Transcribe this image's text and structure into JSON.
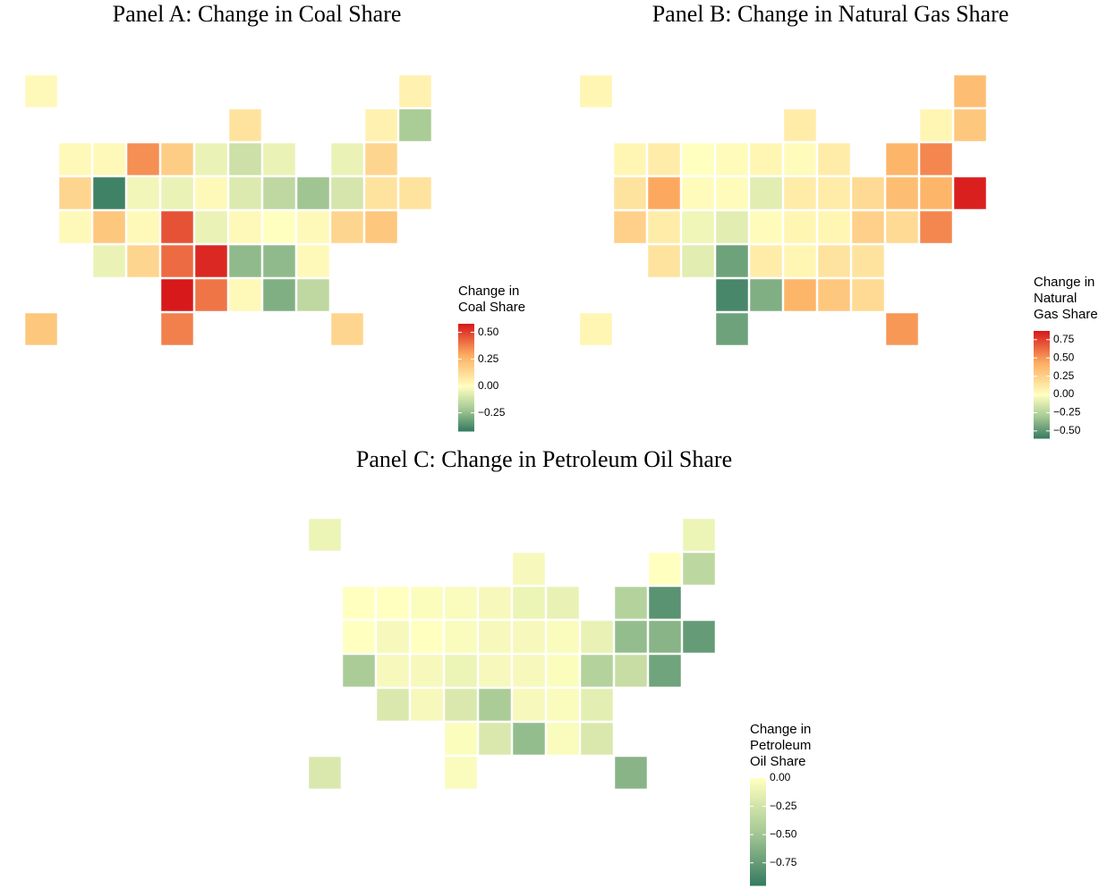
{
  "chart_data": [
    {
      "type": "choropleth",
      "title": "Panel A: Change in Coal Share",
      "legend_title": [
        "Change in",
        "Coal Share"
      ],
      "values": [
        0.02,
        0.05,
        0.1,
        0.05,
        -0.2,
        0.02,
        0.02,
        0.35,
        0.18,
        -0.05,
        -0.12,
        -0.05,
        -0.05,
        0.15,
        0.15,
        -0.4,
        -0.03,
        -0.05,
        0.02,
        -0.08,
        -0.15,
        -0.22,
        -0.1,
        0.1,
        0.1,
        0.02,
        0.2,
        0.02,
        0.47,
        -0.05,
        0.02,
        0.0,
        0.02,
        0.15,
        0.2,
        -0.05,
        0.15,
        0.42,
        0.55,
        -0.25,
        -0.25,
        0.02,
        0.58,
        0.4,
        0.02,
        -0.28,
        -0.15,
        0.2,
        0.38,
        0.15
      ],
      "clim": [
        -0.42,
        0.58
      ],
      "ticks": [
        {
          "value": 0.5,
          "label": "0.50"
        },
        {
          "value": 0.25,
          "label": "0.25"
        },
        {
          "value": 0,
          "label": "0.00"
        },
        {
          "value": -0.25,
          "label": "−0.25"
        }
      ],
      "colors": [
        "#357a60",
        "#a6c995",
        "#ffffbf",
        "#fdae61",
        "#d7191c"
      ]
    },
    {
      "type": "choropleth",
      "title": "Panel B: Change in Natural Gas Share",
      "legend_title": [
        "Change in",
        "Natural",
        "Gas Share"
      ],
      "values": [
        0.05,
        0.35,
        0.1,
        0.05,
        0.3,
        0.05,
        0.1,
        0.0,
        0.02,
        0.05,
        0.02,
        0.1,
        0.4,
        0.55,
        0.15,
        0.45,
        0.02,
        0.02,
        -0.1,
        0.1,
        0.1,
        0.2,
        0.35,
        0.4,
        0.85,
        0.25,
        0.1,
        -0.05,
        -0.1,
        0.02,
        0.05,
        0.05,
        0.25,
        0.2,
        0.55,
        0.15,
        -0.1,
        -0.45,
        0.1,
        0.05,
        0.15,
        0.15,
        -0.55,
        -0.4,
        0.4,
        0.3,
        0.2,
        0.05,
        -0.45,
        0.5
      ],
      "clim": [
        -0.6,
        0.87
      ],
      "ticks": [
        {
          "value": 0.75,
          "label": "0.75"
        },
        {
          "value": 0.5,
          "label": "0.50"
        },
        {
          "value": 0.25,
          "label": "0.25"
        },
        {
          "value": 0,
          "label": "0.00"
        },
        {
          "value": -0.25,
          "label": "−0.25"
        },
        {
          "value": -0.5,
          "label": "−0.50"
        }
      ],
      "colors": [
        "#357a60",
        "#a6c995",
        "#ffffbf",
        "#fdae61",
        "#d7191c"
      ]
    },
    {
      "type": "choropleth",
      "title": "Panel C: Change in Petroleum Oil Share",
      "legend_title": [
        "Change in",
        "Petroleum",
        "Oil Share"
      ],
      "values": [
        -0.1,
        -0.1,
        -0.05,
        0.0,
        -0.35,
        0.0,
        0.0,
        -0.02,
        -0.03,
        -0.05,
        -0.1,
        -0.12,
        -0.4,
        -0.8,
        0.0,
        -0.05,
        0.0,
        -0.03,
        -0.05,
        -0.05,
        -0.03,
        -0.12,
        -0.55,
        -0.6,
        -0.75,
        -0.45,
        -0.05,
        -0.05,
        -0.1,
        -0.05,
        -0.05,
        -0.02,
        -0.4,
        -0.3,
        -0.7,
        -0.2,
        -0.05,
        -0.2,
        -0.45,
        -0.05,
        -0.03,
        -0.15,
        -0.02,
        -0.2,
        -0.55,
        -0.03,
        -0.2,
        -0.2,
        -0.03,
        -0.6
      ],
      "clim": [
        -0.95,
        0.0
      ],
      "ticks": [
        {
          "value": 0,
          "label": "0.00"
        },
        {
          "value": -0.25,
          "label": "−0.25"
        },
        {
          "value": -0.5,
          "label": "−0.50"
        },
        {
          "value": -0.75,
          "label": "−0.75"
        }
      ],
      "colors": [
        "#357a60",
        "#a6c995",
        "#ffffbf",
        "#fdae61",
        "#d7191c"
      ]
    }
  ]
}
